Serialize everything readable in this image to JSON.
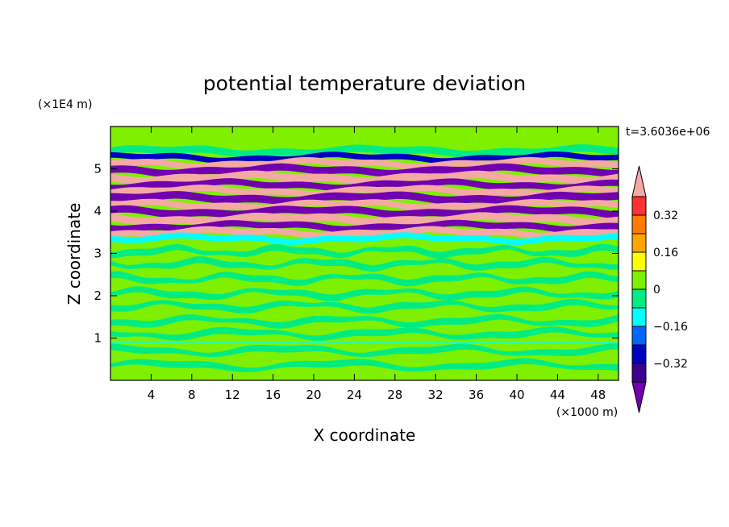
{
  "chart_data": {
    "type": "heatmap",
    "title": "potential temperature deviation",
    "time_label": "t=3.6036e+06",
    "xlabel": "X coordinate",
    "ylabel": "Z coordinate",
    "x_unit": "(×1000 m)",
    "y_unit": "(×1E4 m)",
    "xlim": [
      0,
      50
    ],
    "ylim": [
      0,
      6
    ],
    "xticks": [
      "4",
      "8",
      "12",
      "16",
      "20",
      "24",
      "28",
      "32",
      "36",
      "40",
      "44",
      "48"
    ],
    "yticks": [
      "1",
      "2",
      "3",
      "4",
      "5"
    ],
    "colorbar": {
      "tick_labels": [
        "0.32",
        "0.16",
        "0",
        "−0.16",
        "−0.32"
      ],
      "levels": [
        0.4,
        0.32,
        0.24,
        0.16,
        0.08,
        0,
        -0.08,
        -0.16,
        -0.24,
        -0.32,
        -0.4
      ],
      "colors": [
        "#f5a9a3",
        "#ff3030",
        "#ff7b00",
        "#ffa500",
        "#ffff00",
        "#7ef000",
        "#00ec83",
        "#00ffff",
        "#0066ff",
        "#0000c0",
        "#3c008c",
        "#7000b0"
      ]
    },
    "bands": [
      {
        "z": [
          5.33,
          5.5
        ],
        "color": "#00ec83"
      },
      {
        "z": [
          5.2,
          5.33
        ],
        "color": "#0000c0"
      },
      {
        "z": [
          5.05,
          5.2
        ],
        "color": "#f5a9a3"
      },
      {
        "z": [
          4.88,
          5.05
        ],
        "color": "#7000b0"
      },
      {
        "z": [
          4.7,
          4.88
        ],
        "color": "#f5a9a3"
      },
      {
        "z": [
          4.55,
          4.7
        ],
        "color": "#7000b0"
      },
      {
        "z": [
          4.4,
          4.55
        ],
        "color": "#f5a9a3"
      },
      {
        "z": [
          4.22,
          4.4
        ],
        "color": "#7000b0"
      },
      {
        "z": [
          4.07,
          4.22
        ],
        "color": "#f5a9a3"
      },
      {
        "z": [
          3.9,
          4.07
        ],
        "color": "#7000b0"
      },
      {
        "z": [
          3.72,
          3.9
        ],
        "color": "#f5a9a3"
      },
      {
        "z": [
          3.57,
          3.72
        ],
        "color": "#7000b0"
      },
      {
        "z": [
          3.42,
          3.57
        ],
        "color": "#f5a9a3"
      },
      {
        "z": [
          3.28,
          3.42
        ],
        "color": "#00ffff"
      }
    ],
    "near_surface_line_z": 0.9,
    "background_colors": [
      "#7ef000",
      "#00ec83"
    ]
  }
}
